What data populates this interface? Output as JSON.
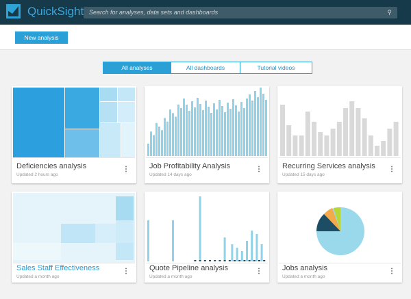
{
  "header": {
    "brand": "QuickSight",
    "search_placeholder": "Search for analyses, data sets and dashboards",
    "search_icon": "search-icon"
  },
  "toolbar": {
    "new_analysis": "New analysis"
  },
  "tabs": [
    {
      "label": "All analyses",
      "active": true
    },
    {
      "label": "All dashboards"
    },
    {
      "label": "Tutorial videos"
    }
  ],
  "colors": {
    "header": "#173a4b",
    "accent": "#2aa0d6",
    "bar": "#8fd3ea",
    "gray_bar": "#d9d9d9"
  },
  "cards": [
    {
      "title": "Deficiencies analysis",
      "updated": "Updated 2 hours ago",
      "thumb": "treemap"
    },
    {
      "title": "Job Profitability Analysis",
      "updated": "Updated 14 days ago",
      "thumb": "bar"
    },
    {
      "title": "Recurring Services analysis",
      "updated": "Updated 15 days ago",
      "thumb": "gray-bar"
    },
    {
      "title": "Sales Staff Effectiveness",
      "updated": "Updated a month ago",
      "thumb": "heatmap"
    },
    {
      "title": "Quote Pipeline analysis",
      "updated": "Updated a month ago",
      "thumb": "sparse-bar"
    },
    {
      "title": "Jobs analysis",
      "updated": "Updated a month ago",
      "thumb": "pie"
    }
  ]
}
